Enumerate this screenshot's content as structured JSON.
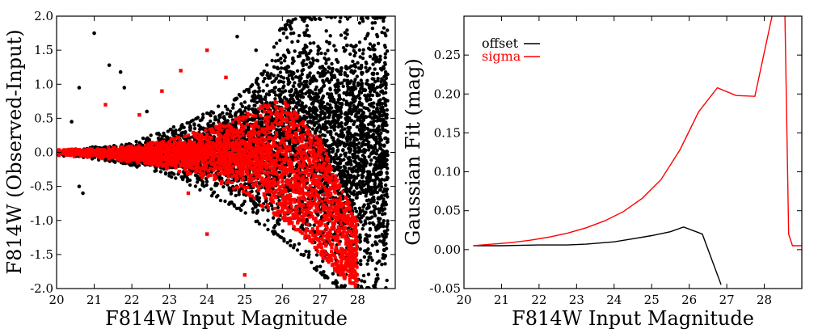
{
  "chart_data": [
    {
      "type": "scatter",
      "xlabel": "F814W Input Magnitude",
      "ylabel": "F814W (Observed-Input)",
      "xlim": [
        20,
        29
      ],
      "ylim": [
        -2.0,
        2.0
      ],
      "xticks": [
        20,
        21,
        22,
        23,
        24,
        25,
        26,
        27,
        28
      ],
      "yticks": [
        -2.0,
        -1.5,
        -1.0,
        -0.5,
        0.0,
        0.5,
        1.0,
        1.5,
        2.0
      ],
      "grid": false,
      "series": [
        {
          "color": "#000000",
          "description_mode": "dense scatter; points cluster near 0 at bright magnitudes and spread to the full range beyond 26 mag",
          "envelope": {
            "x": [
              20.0,
              21.0,
              22.0,
              23.0,
              24.0,
              25.0,
              25.5,
              26.0,
              26.5,
              27.0,
              27.5,
              28.0,
              28.5
            ],
            "upper": [
              0.05,
              0.08,
              0.15,
              0.35,
              0.6,
              0.9,
              1.2,
              1.9,
              2.0,
              2.0,
              2.0,
              2.0,
              2.0
            ],
            "lower": [
              -0.05,
              -0.1,
              -0.2,
              -0.35,
              -0.6,
              -0.9,
              -1.1,
              -1.3,
              -1.5,
              -1.8,
              -2.0,
              -2.0,
              -2.0
            ]
          },
          "outliers": [
            {
              "x": 20.6,
              "y": 0.95
            },
            {
              "x": 20.7,
              "y": -0.6
            },
            {
              "x": 21.0,
              "y": 1.75
            },
            {
              "x": 21.4,
              "y": 1.28
            },
            {
              "x": 21.7,
              "y": 1.18
            },
            {
              "x": 21.8,
              "y": 0.95
            },
            {
              "x": 20.4,
              "y": 0.45
            },
            {
              "x": 20.6,
              "y": -0.5
            },
            {
              "x": 22.4,
              "y": 0.6
            },
            {
              "x": 24.8,
              "y": 1.7
            },
            {
              "x": 25.3,
              "y": 1.5
            }
          ]
        },
        {
          "color": "#ff0000",
          "description_mode": "red subset concentrated inside a wedge that narrows to ~0 at 27.5 mag",
          "envelope": {
            "x": [
              20.0,
              21.0,
              22.0,
              23.0,
              24.0,
              25.0,
              25.5,
              26.0,
              26.5,
              27.0,
              27.5,
              28.0
            ],
            "upper": [
              0.05,
              0.06,
              0.1,
              0.2,
              0.35,
              0.55,
              0.7,
              0.8,
              0.5,
              0.2,
              -0.4,
              -1.0
            ],
            "lower": [
              -0.05,
              -0.08,
              -0.15,
              -0.25,
              -0.4,
              -0.6,
              -0.8,
              -1.0,
              -1.2,
              -1.5,
              -1.8,
              -2.0
            ]
          },
          "outliers": [
            {
              "x": 21.3,
              "y": 0.7
            },
            {
              "x": 22.2,
              "y": 0.55
            },
            {
              "x": 24.5,
              "y": 1.1
            },
            {
              "x": 24.0,
              "y": 1.5
            },
            {
              "x": 23.3,
              "y": 1.2
            },
            {
              "x": 22.8,
              "y": 0.9
            },
            {
              "x": 23.5,
              "y": -0.6
            },
            {
              "x": 24.0,
              "y": -1.2
            },
            {
              "x": 25.0,
              "y": -1.8
            }
          ]
        }
      ]
    },
    {
      "type": "line",
      "xlabel": "F814W Input Magnitude",
      "ylabel": "Gaussian Fit (mag)",
      "xlim": [
        20,
        29
      ],
      "ylim": [
        -0.05,
        0.3
      ],
      "xticks": [
        20,
        21,
        22,
        23,
        24,
        25,
        26,
        27,
        28
      ],
      "yticks": [
        -0.05,
        0.0,
        0.05,
        0.1,
        0.15,
        0.2,
        0.25
      ],
      "ytick_labels": [
        "-0.05",
        "0.00",
        "0.05",
        "0.10",
        "0.15",
        "0.20",
        "0.25"
      ],
      "grid": false,
      "legend_position": "top-left",
      "series": [
        {
          "name": "offset",
          "color": "#000000",
          "x": [
            20.25,
            21.0,
            22.0,
            22.75,
            23.25,
            24.0,
            24.5,
            25.0,
            25.5,
            25.85,
            26.35,
            26.85
          ],
          "y": [
            0.005,
            0.005,
            0.006,
            0.006,
            0.007,
            0.01,
            0.014,
            0.018,
            0.023,
            0.029,
            0.02,
            -0.045
          ]
        },
        {
          "name": "sigma",
          "color": "#ff0000",
          "x": [
            20.25,
            20.75,
            21.25,
            21.75,
            22.25,
            22.75,
            23.25,
            23.75,
            24.25,
            24.75,
            25.25,
            25.75,
            26.25,
            26.75,
            27.25,
            27.75,
            28.25,
            28.55,
            28.65,
            28.75,
            29.0
          ],
          "y": [
            0.005,
            0.007,
            0.009,
            0.012,
            0.016,
            0.021,
            0.028,
            0.037,
            0.049,
            0.066,
            0.09,
            0.128,
            0.177,
            0.208,
            0.198,
            0.197,
            0.31,
            0.3,
            0.02,
            0.005,
            0.005
          ]
        }
      ]
    }
  ]
}
